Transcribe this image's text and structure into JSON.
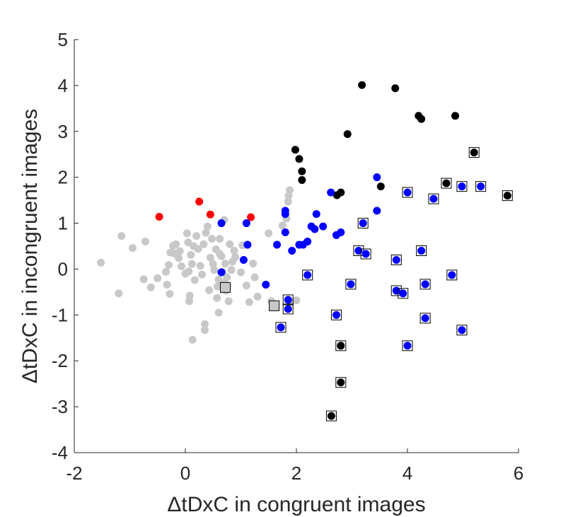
{
  "chart_data": {
    "type": "scatter",
    "title": "",
    "xlabel": "ΔtDxC in congruent images",
    "ylabel": "ΔtDxC in incongruent images",
    "xlim": [
      -2,
      6
    ],
    "ylim": [
      -4,
      5
    ],
    "xticks": [
      "-2",
      "0",
      "2",
      "4",
      "6"
    ],
    "yticks": [
      "-4",
      "-3",
      "-2",
      "-1",
      "0",
      "1",
      "2",
      "3",
      "4",
      "5"
    ],
    "grid": false,
    "box": "off",
    "series": [
      {
        "color": "#c8c8c8",
        "marker": "circle",
        "points": [
          [
            -1.52,
            0.14
          ],
          [
            -1.15,
            0.72
          ],
          [
            -1.2,
            -0.53
          ],
          [
            -0.95,
            0.46
          ],
          [
            -0.72,
            0.6
          ],
          [
            -0.75,
            -0.22
          ],
          [
            -0.62,
            -0.4
          ],
          [
            -0.5,
            -0.2
          ],
          [
            -0.35,
            -0.06
          ],
          [
            -0.33,
            -0.34
          ],
          [
            -0.3,
            0.09
          ],
          [
            -0.28,
            -0.54
          ],
          [
            -0.27,
            0.36
          ],
          [
            -0.22,
            0.51
          ],
          [
            -0.2,
            0.34
          ],
          [
            -0.17,
            0.54
          ],
          [
            -0.12,
            0.24
          ],
          [
            -0.1,
            0.39
          ],
          [
            -0.07,
            0.06
          ],
          [
            0.0,
            -0.1
          ],
          [
            0.03,
            0.78
          ],
          [
            0.05,
            0.58
          ],
          [
            0.06,
            -0.05
          ],
          [
            0.07,
            -0.7
          ],
          [
            0.08,
            -0.58
          ],
          [
            0.1,
            0.31
          ],
          [
            0.12,
            0.11
          ],
          [
            0.13,
            -1.54
          ],
          [
            0.15,
            0.5
          ],
          [
            0.17,
            -0.24
          ],
          [
            0.2,
            0.72
          ],
          [
            0.23,
            0.44
          ],
          [
            0.27,
            0.07
          ],
          [
            0.3,
            -0.12
          ],
          [
            0.33,
            0.54
          ],
          [
            0.35,
            -1.33
          ],
          [
            0.35,
            -1.2
          ],
          [
            0.37,
            0.79
          ],
          [
            0.4,
            0.93
          ],
          [
            0.43,
            -0.46
          ],
          [
            0.45,
            0.25
          ],
          [
            0.48,
            0.66
          ],
          [
            0.5,
            0.11
          ],
          [
            0.52,
            -0.02
          ],
          [
            0.55,
            0.43
          ],
          [
            0.57,
            -0.63
          ],
          [
            0.58,
            -0.38
          ],
          [
            0.6,
            -0.23
          ],
          [
            0.6,
            -0.95
          ],
          [
            0.62,
            0.66
          ],
          [
            0.62,
            0.33
          ],
          [
            0.65,
            0.28
          ],
          [
            0.67,
            -0.06
          ],
          [
            0.7,
            1.07
          ],
          [
            0.7,
            -0.3
          ],
          [
            0.72,
            0.12
          ],
          [
            0.73,
            -0.47
          ],
          [
            0.75,
            -0.18
          ],
          [
            0.78,
            -0.7
          ],
          [
            0.8,
            0.54
          ],
          [
            0.83,
            -0.02
          ],
          [
            0.85,
            0.16
          ],
          [
            0.88,
            0.4
          ],
          [
            0.9,
            0.26
          ],
          [
            1.0,
            -0.07
          ],
          [
            1.03,
            0.52
          ],
          [
            1.1,
            -0.36
          ],
          [
            1.15,
            -0.72
          ],
          [
            1.22,
            0.12
          ],
          [
            1.25,
            -0.18
          ],
          [
            1.3,
            -0.6
          ],
          [
            1.5,
            0.78
          ],
          [
            1.55,
            -0.7
          ],
          [
            1.75,
            0.95
          ],
          [
            1.82,
            1.1
          ],
          [
            1.85,
            1.47
          ],
          [
            1.86,
            1.6
          ],
          [
            1.88,
            1.72
          ],
          [
            1.9,
            -0.72
          ],
          [
            2.0,
            -0.68
          ]
        ]
      },
      {
        "color": "#ff0000",
        "marker": "circle",
        "points": [
          [
            -0.47,
            1.14
          ],
          [
            0.25,
            1.47
          ],
          [
            0.45,
            1.19
          ],
          [
            1.18,
            1.13
          ]
        ]
      },
      {
        "color": "#000000",
        "marker": "circle",
        "points": [
          [
            1.98,
            2.6
          ],
          [
            2.05,
            2.4
          ],
          [
            2.1,
            2.13
          ],
          [
            2.1,
            1.94
          ],
          [
            2.92,
            2.94
          ],
          [
            3.18,
            4.01
          ],
          [
            3.78,
            3.94
          ],
          [
            4.2,
            3.34
          ],
          [
            4.25,
            3.27
          ],
          [
            4.86,
            3.34
          ],
          [
            2.73,
            1.61
          ],
          [
            2.8,
            1.67
          ],
          [
            3.52,
            1.8
          ]
        ]
      },
      {
        "color": "#0000ff",
        "marker": "circle",
        "points": [
          [
            0.65,
            1.0
          ],
          [
            0.65,
            -0.07
          ],
          [
            1.05,
            0.2
          ],
          [
            1.1,
            1.0
          ],
          [
            1.12,
            0.53
          ],
          [
            1.45,
            -0.34
          ],
          [
            1.65,
            0.53
          ],
          [
            1.8,
            1.27
          ],
          [
            1.8,
            1.2
          ],
          [
            1.8,
            0.8
          ],
          [
            1.92,
            0.4
          ],
          [
            2.05,
            0.53
          ],
          [
            2.12,
            0.53
          ],
          [
            2.2,
            0.6
          ],
          [
            2.27,
            0.93
          ],
          [
            2.33,
            0.87
          ],
          [
            2.36,
            1.2
          ],
          [
            2.48,
            0.93
          ],
          [
            2.62,
            1.67
          ],
          [
            2.72,
            0.74
          ],
          [
            2.8,
            0.8
          ],
          [
            3.45,
            2.0
          ],
          [
            3.45,
            1.27
          ]
        ]
      },
      {
        "color": "#0000ff",
        "marker": "circle-in-square",
        "points": [
          [
            1.72,
            -1.27
          ],
          [
            1.85,
            -0.67
          ],
          [
            1.85,
            -0.87
          ],
          [
            2.2,
            -0.13
          ],
          [
            2.72,
            -1.0
          ],
          [
            2.98,
            -0.33
          ],
          [
            3.12,
            0.4
          ],
          [
            3.2,
            1.0
          ],
          [
            3.25,
            0.33
          ],
          [
            3.8,
            0.2
          ],
          [
            3.8,
            -0.47
          ],
          [
            3.92,
            -0.53
          ],
          [
            4.0,
            1.67
          ],
          [
            4.0,
            -1.67
          ],
          [
            4.25,
            0.4
          ],
          [
            4.32,
            -0.33
          ],
          [
            4.32,
            -1.07
          ],
          [
            4.47,
            1.53
          ],
          [
            4.8,
            -0.13
          ],
          [
            4.98,
            1.8
          ],
          [
            4.98,
            -1.33
          ],
          [
            5.32,
            1.8
          ]
        ]
      },
      {
        "color": "#000000",
        "marker": "circle-in-square",
        "points": [
          [
            2.63,
            -3.2
          ],
          [
            2.8,
            -1.67
          ],
          [
            2.8,
            -2.47
          ],
          [
            4.7,
            1.87
          ],
          [
            5.2,
            2.54
          ],
          [
            5.8,
            1.6
          ]
        ]
      },
      {
        "color": "#c8c8c8",
        "marker": "square",
        "points": [
          [
            0.72,
            -0.4
          ],
          [
            1.6,
            -0.8
          ]
        ]
      }
    ]
  }
}
